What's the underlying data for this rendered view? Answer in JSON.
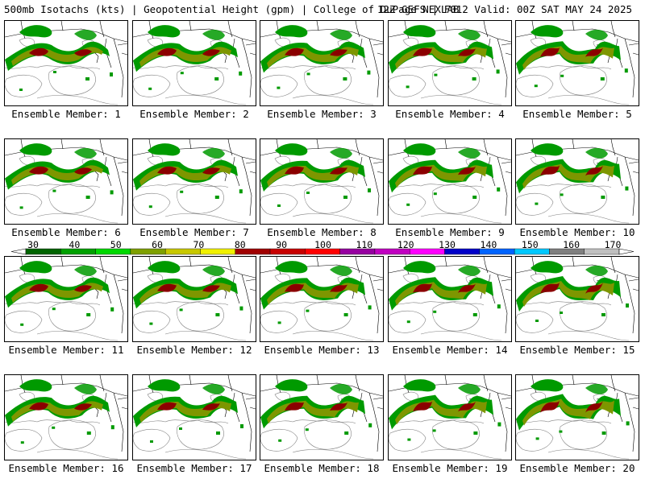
{
  "header": {
    "left": "500mb Isotachs (kts) | Geopotential Height (gpm) | College of DuPage NEXLAB",
    "right": "12Z GEFS | F012 Valid: 00Z SAT MAY 24 2025"
  },
  "member_prefix": "Ensemble Member:",
  "members": [
    {
      "number": "1"
    },
    {
      "number": "2"
    },
    {
      "number": "3"
    },
    {
      "number": "4"
    },
    {
      "number": "5"
    },
    {
      "number": "6"
    },
    {
      "number": "7"
    },
    {
      "number": "8"
    },
    {
      "number": "9"
    },
    {
      "number": "10"
    },
    {
      "number": "11"
    },
    {
      "number": "12"
    },
    {
      "number": "13"
    },
    {
      "number": "14"
    },
    {
      "number": "15"
    },
    {
      "number": "16"
    },
    {
      "number": "17"
    },
    {
      "number": "18"
    },
    {
      "number": "19"
    },
    {
      "number": "20"
    }
  ],
  "colorbar": {
    "labels": [
      "30",
      "40",
      "50",
      "60",
      "70",
      "80",
      "90",
      "100",
      "110",
      "120",
      "130",
      "140",
      "150",
      "160",
      "170"
    ],
    "colors": [
      "#006400",
      "#00a000",
      "#00d800",
      "#7fa000",
      "#c8c800",
      "#f0f000",
      "#a00000",
      "#c80000",
      "#ff0000",
      "#9600a0",
      "#c000c0",
      "#ff00ff",
      "#0000c8",
      "#0064ff",
      "#00c8ff",
      "#808080",
      "#c0c0c0"
    ]
  },
  "map_colors": {
    "low": "#009a00",
    "mid": "#7e9600",
    "high": "#8b0000",
    "contour": "#808080",
    "border": "#000000"
  }
}
